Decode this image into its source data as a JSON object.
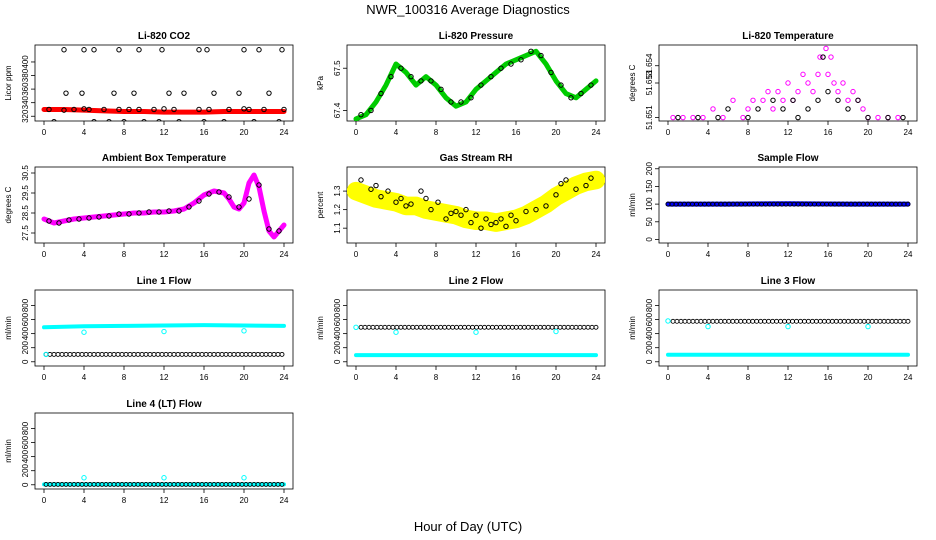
{
  "figure": {
    "title": "NWR_100316  Average Diagnostics",
    "xlabel": "Hour of Day (UTC)"
  },
  "chart_data": [
    {
      "type": "scatter",
      "title": "Li-820 CO2",
      "ylabel": "Licor ppm",
      "xlim": [
        0,
        24
      ],
      "ylim": [
        313,
        425
      ],
      "xticks": [
        0,
        4,
        8,
        12,
        16,
        20,
        24
      ],
      "yticks": [
        320,
        340,
        360,
        380,
        400
      ],
      "series": [
        {
          "name": "all",
          "color": "#ff0000",
          "style": "line",
          "x": [
            0,
            2,
            4,
            6,
            8,
            10,
            12,
            14,
            16,
            18,
            20,
            22,
            24
          ],
          "y": [
            330,
            330,
            329,
            328,
            327,
            327,
            326,
            326,
            326,
            327,
            327,
            327,
            327
          ]
        },
        {
          "name": "avg",
          "color": "#000000",
          "style": "points",
          "x": [
            0.5,
            1,
            2,
            3,
            4,
            4.5,
            5,
            6,
            6.5,
            7.5,
            8,
            8.5,
            9.5,
            10,
            11,
            11.5,
            12,
            13,
            13.5,
            15.5,
            16,
            16.5,
            18,
            18.5,
            20,
            20.5,
            21,
            22,
            23.5,
            24,
            2.2,
            3.8,
            7,
            9,
            12.5,
            14,
            17,
            19.5,
            22.5,
            2,
            4,
            5,
            7.5,
            9.5,
            11.8,
            15.5,
            16.3,
            20,
            21.5,
            23.8
          ],
          "y": [
            330,
            312,
            329,
            330,
            331,
            330,
            312,
            330,
            312,
            330,
            312,
            330,
            330,
            312,
            330,
            312,
            331,
            330,
            312,
            330,
            312,
            330,
            312,
            330,
            331,
            330,
            312,
            330,
            312,
            330,
            354,
            354,
            354,
            354,
            354,
            354,
            354,
            354,
            354,
            418,
            418,
            418,
            418,
            418,
            418,
            418,
            418,
            418,
            418,
            418
          ]
        }
      ]
    },
    {
      "type": "scatter",
      "title": "Li-820 Pressure",
      "ylabel": "kPa",
      "xlim": [
        0,
        24
      ],
      "ylim": [
        67.375,
        67.555
      ],
      "xticks": [
        0,
        4,
        8,
        12,
        16,
        20,
        24
      ],
      "yticks": [
        67.4,
        67.5
      ],
      "series": [
        {
          "name": "all",
          "color": "#00cc00",
          "style": "line",
          "x": [
            0,
            1,
            2,
            3,
            4,
            5,
            6,
            7,
            8,
            9,
            10,
            11,
            12,
            13,
            14,
            15,
            16,
            17,
            18,
            19,
            20,
            21,
            22,
            23,
            24
          ],
          "y": [
            67.38,
            67.39,
            67.42,
            67.46,
            67.51,
            67.49,
            67.46,
            67.48,
            67.46,
            67.43,
            67.41,
            67.42,
            67.45,
            67.47,
            67.49,
            67.51,
            67.52,
            67.53,
            67.54,
            67.51,
            67.47,
            67.44,
            67.43,
            67.45,
            67.47
          ]
        },
        {
          "name": "avg",
          "color": "#000000",
          "style": "points",
          "x": [
            0.5,
            1.5,
            2.5,
            3.5,
            4.5,
            5.5,
            6.5,
            7.5,
            8.5,
            9.5,
            10.5,
            11.5,
            12.5,
            13.5,
            14.5,
            15.5,
            16.5,
            17.5,
            18.5,
            19.5,
            20.5,
            21.5,
            22.5,
            23.5
          ],
          "y": [
            67.39,
            67.4,
            67.44,
            67.48,
            67.5,
            67.48,
            67.47,
            67.47,
            67.45,
            67.42,
            67.42,
            67.43,
            67.46,
            67.48,
            67.5,
            67.51,
            67.52,
            67.54,
            67.53,
            67.49,
            67.46,
            67.43,
            67.44,
            67.46
          ]
        }
      ]
    },
    {
      "type": "scatter",
      "title": "Li-820 Temperature",
      "ylabel": "degrees C",
      "xlim": [
        0,
        24
      ],
      "ylim": [
        51.6508,
        51.6552
      ],
      "xticks": [
        0,
        4,
        8,
        12,
        16,
        20,
        24
      ],
      "yticks": [
        51.651,
        51.653,
        51.654
      ],
      "ytick_labels": [
        "51.651",
        "51.653",
        "51.654"
      ],
      "series": [
        {
          "name": "all",
          "color": "#ff00ff",
          "style": "points",
          "x": [
            0.5,
            1.5,
            2.5,
            3.5,
            4.5,
            5.5,
            6.5,
            7.5,
            8,
            8.5,
            9.5,
            10,
            10.5,
            11,
            11.5,
            12,
            12.5,
            13,
            13.5,
            14,
            14.5,
            15,
            15.2,
            15.5,
            15.8,
            16,
            16.3,
            16.6,
            17,
            17.5,
            18,
            18.5,
            19,
            19.5,
            20,
            21,
            22,
            23
          ],
          "y": [
            51.651,
            51.651,
            51.651,
            51.651,
            51.6515,
            51.651,
            51.652,
            51.651,
            51.6515,
            51.652,
            51.652,
            51.6525,
            51.6515,
            51.6525,
            51.652,
            51.653,
            51.652,
            51.6525,
            51.6535,
            51.653,
            51.6525,
            51.6535,
            51.6545,
            51.6545,
            51.655,
            51.6535,
            51.6545,
            51.653,
            51.6525,
            51.653,
            51.652,
            51.6525,
            51.652,
            51.6515,
            51.651,
            51.651,
            51.651,
            51.651
          ]
        },
        {
          "name": "avg",
          "color": "#000000",
          "style": "points",
          "x": [
            1,
            3,
            5,
            6,
            8,
            9,
            10.5,
            11.5,
            12.5,
            13,
            14,
            15,
            15.5,
            16,
            17,
            18,
            19,
            20,
            22,
            23.5
          ],
          "y": [
            51.651,
            51.651,
            51.651,
            51.6515,
            51.651,
            51.6515,
            51.652,
            51.6515,
            51.652,
            51.651,
            51.6515,
            51.652,
            51.6545,
            51.6525,
            51.652,
            51.6515,
            51.652,
            51.651,
            51.651,
            51.651
          ]
        }
      ]
    },
    {
      "type": "scatter",
      "title": "Ambient Box Temperature",
      "ylabel": "degrees C",
      "xlim": [
        0,
        24
      ],
      "ylim": [
        27.0,
        30.8
      ],
      "xticks": [
        0,
        4,
        8,
        12,
        16,
        20,
        24
      ],
      "yticks": [
        27.5,
        28.5,
        29.5,
        30.5
      ],
      "ytick_labels": [
        "27.5",
        "28.5",
        "29.5",
        "30.5"
      ],
      "series": [
        {
          "name": "all",
          "color": "#ff00ff",
          "style": "line",
          "x": [
            0,
            1,
            2,
            3,
            4,
            5,
            6,
            7,
            8,
            9,
            10,
            11,
            12,
            13,
            14,
            15,
            16,
            17,
            18,
            18.5,
            19,
            19.5,
            20,
            20.5,
            21,
            21.5,
            22,
            22.5,
            23,
            23.5,
            24
          ],
          "y": [
            28.2,
            28.0,
            28.1,
            28.2,
            28.25,
            28.3,
            28.35,
            28.4,
            28.45,
            28.5,
            28.5,
            28.55,
            28.55,
            28.6,
            28.7,
            29.0,
            29.4,
            29.6,
            29.5,
            29.2,
            28.8,
            28.7,
            29.0,
            30.0,
            30.4,
            29.8,
            28.6,
            27.6,
            27.3,
            27.6,
            27.9
          ]
        },
        {
          "name": "avg",
          "color": "#000000",
          "style": "points",
          "x": [
            0.5,
            1.5,
            2.5,
            3.5,
            4.5,
            5.5,
            6.5,
            7.5,
            8.5,
            9.5,
            10.5,
            11.5,
            12.5,
            13.5,
            14.5,
            15.5,
            16.5,
            17.5,
            18.5,
            19.5,
            20.5,
            21.5,
            22.5,
            23.5
          ],
          "y": [
            28.1,
            28.0,
            28.15,
            28.2,
            28.25,
            28.3,
            28.35,
            28.45,
            28.45,
            28.5,
            28.55,
            28.55,
            28.6,
            28.6,
            28.8,
            29.1,
            29.45,
            29.55,
            29.3,
            28.8,
            29.2,
            29.9,
            27.7,
            27.6
          ]
        }
      ]
    },
    {
      "type": "scatter",
      "title": "Gas Stream RH",
      "ylabel": "percent",
      "xlim": [
        0,
        24
      ],
      "ylim": [
        1.02,
        1.43
      ],
      "xticks": [
        0,
        4,
        8,
        12,
        16,
        20,
        24
      ],
      "yticks": [
        1.1,
        1.2,
        1.3
      ],
      "series": [
        {
          "name": "all",
          "color": "#ffff00",
          "style": "band",
          "x": [
            0,
            1,
            2,
            3,
            4,
            5,
            6,
            7,
            8,
            9,
            10,
            11,
            12,
            13,
            14,
            15,
            16,
            17,
            18,
            19,
            20,
            21,
            22,
            23,
            24
          ],
          "y": [
            1.3,
            1.28,
            1.26,
            1.25,
            1.24,
            1.22,
            1.22,
            1.2,
            1.19,
            1.18,
            1.17,
            1.15,
            1.14,
            1.14,
            1.13,
            1.14,
            1.15,
            1.17,
            1.2,
            1.23,
            1.27,
            1.3,
            1.33,
            1.35,
            1.36
          ],
          "spread": 0.05
        },
        {
          "name": "avg",
          "color": "#000000",
          "style": "points",
          "x": [
            0.5,
            1.5,
            2,
            2.5,
            3.2,
            4,
            4.5,
            5,
            5.5,
            6.5,
            7,
            7.5,
            8.2,
            9,
            9.5,
            10,
            10.5,
            11,
            11.5,
            12,
            12.5,
            13,
            13.5,
            14,
            14.5,
            15,
            15.5,
            16,
            17,
            18,
            19,
            20,
            20.5,
            21,
            22,
            23,
            23.5
          ],
          "y": [
            1.36,
            1.31,
            1.33,
            1.27,
            1.3,
            1.24,
            1.26,
            1.22,
            1.23,
            1.3,
            1.26,
            1.2,
            1.24,
            1.15,
            1.18,
            1.19,
            1.17,
            1.2,
            1.13,
            1.17,
            1.1,
            1.15,
            1.12,
            1.13,
            1.15,
            1.11,
            1.17,
            1.14,
            1.19,
            1.2,
            1.22,
            1.28,
            1.34,
            1.36,
            1.31,
            1.33,
            1.37
          ]
        }
      ]
    },
    {
      "type": "scatter",
      "title": "Sample Flow",
      "ylabel": "ml/min",
      "xlim": [
        0,
        24
      ],
      "ylim": [
        -10,
        205
      ],
      "xticks": [
        0,
        4,
        8,
        12,
        16,
        20,
        24
      ],
      "yticks": [
        0,
        50,
        100,
        150,
        200
      ],
      "series": [
        {
          "name": "all",
          "color": "#0000ff",
          "style": "line",
          "x": [
            0,
            6,
            12,
            18,
            24
          ],
          "y": [
            100,
            100,
            101,
            100,
            100
          ]
        },
        {
          "name": "avg",
          "color": "#000000",
          "style": "row",
          "x0": 0,
          "x1": 24,
          "n": 60,
          "y": 100
        }
      ]
    },
    {
      "type": "scatter",
      "title": "Line 1 Flow",
      "ylabel": "ml/min",
      "xlim": [
        0,
        24
      ],
      "ylim": [
        -60,
        1020
      ],
      "xticks": [
        0,
        4,
        8,
        12,
        16,
        20,
        24
      ],
      "yticks": [
        0,
        200,
        400,
        600,
        800
      ],
      "series": [
        {
          "name": "line",
          "color": "#00ffff",
          "style": "band",
          "x": [
            0,
            4,
            8,
            12,
            16,
            20,
            24
          ],
          "y": [
            490,
            505,
            510,
            515,
            520,
            515,
            510
          ],
          "spread": 20
        },
        {
          "name": "low",
          "color": "#000000",
          "style": "row",
          "x0": 0.2,
          "x1": 23.8,
          "n": 60,
          "y": 105
        },
        {
          "name": "outliers",
          "color": "#00ffff",
          "style": "points",
          "x": [
            0.2,
            4,
            12,
            20
          ],
          "y": [
            105,
            420,
            430,
            440
          ]
        }
      ]
    },
    {
      "type": "scatter",
      "title": "Line 2 Flow",
      "ylabel": "ml/min",
      "xlim": [
        0,
        24
      ],
      "ylim": [
        -60,
        1020
      ],
      "xticks": [
        0,
        4,
        8,
        12,
        16,
        20,
        24
      ],
      "yticks": [
        0,
        200,
        400,
        600,
        800
      ],
      "series": [
        {
          "name": "line",
          "color": "#00ffff",
          "style": "band",
          "x": [
            0,
            24
          ],
          "y": [
            95,
            95
          ],
          "spread": 15
        },
        {
          "name": "high",
          "color": "#000000",
          "style": "row",
          "x0": 0.5,
          "x1": 24,
          "n": 60,
          "y": 490
        },
        {
          "name": "outliers",
          "color": "#00ffff",
          "style": "points",
          "x": [
            0,
            4,
            12,
            20
          ],
          "y": [
            490,
            420,
            420,
            430
          ]
        }
      ]
    },
    {
      "type": "scatter",
      "title": "Line 3 Flow",
      "ylabel": "ml/min",
      "xlim": [
        0,
        24
      ],
      "ylim": [
        -60,
        1020
      ],
      "xticks": [
        0,
        4,
        8,
        12,
        16,
        20,
        24
      ],
      "yticks": [
        0,
        200,
        400,
        600,
        800
      ],
      "series": [
        {
          "name": "line",
          "color": "#00ffff",
          "style": "band",
          "x": [
            0,
            24
          ],
          "y": [
            100,
            100
          ],
          "spread": 15
        },
        {
          "name": "high",
          "color": "#000000",
          "style": "row",
          "x0": 0.5,
          "x1": 24,
          "n": 60,
          "y": 575
        },
        {
          "name": "outliers",
          "color": "#00ffff",
          "style": "points",
          "x": [
            0,
            4,
            12,
            20
          ],
          "y": [
            580,
            500,
            500,
            500
          ]
        }
      ]
    },
    {
      "type": "scatter",
      "title": "Line 4 (LT) Flow",
      "ylabel": "ml/min",
      "xlim": [
        0,
        24
      ],
      "ylim": [
        -60,
        1020
      ],
      "xticks": [
        0,
        4,
        8,
        12,
        16,
        20,
        24
      ],
      "yticks": [
        0,
        200,
        400,
        600,
        800
      ],
      "series": [
        {
          "name": "line",
          "color": "#00ffff",
          "style": "band",
          "x": [
            0,
            24
          ],
          "y": [
            5,
            5
          ],
          "spread": 10
        },
        {
          "name": "low",
          "color": "#000000",
          "style": "row",
          "x0": 0.2,
          "x1": 23.8,
          "n": 60,
          "y": 5
        },
        {
          "name": "outliers",
          "color": "#00ffff",
          "style": "points",
          "x": [
            4,
            12,
            20
          ],
          "y": [
            100,
            100,
            100
          ]
        }
      ]
    }
  ]
}
